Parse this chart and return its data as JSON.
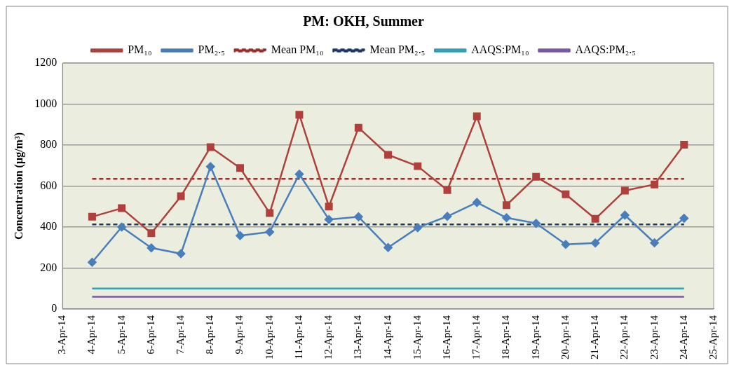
{
  "chart_data": {
    "type": "line",
    "title": "PM: OKH, Summer",
    "ylabel": "Concentration (µg/m³)",
    "categories": [
      "3-Apr-14",
      "4-Apr-14",
      "5-Apr-14",
      "6-Apr-14",
      "7-Apr-14",
      "8-Apr-14",
      "9-Apr-14",
      "10-Apr-14",
      "11-Apr-14",
      "12-Apr-14",
      "13-Apr-14",
      "14-Apr-14",
      "15-Apr-14",
      "16-Apr-14",
      "17-Apr-14",
      "18-Apr-14",
      "19-Apr-14",
      "20-Apr-14",
      "21-Apr-14",
      "22-Apr-14",
      "23-Apr-14",
      "24-Apr-14",
      "25-Apr-14"
    ],
    "series": [
      {
        "name": "PM₁₀",
        "color": "#b0403c",
        "marker": "square",
        "line_style": "solid",
        "values": [
          null,
          450,
          492,
          370,
          550,
          790,
          688,
          468,
          948,
          500,
          885,
          752,
          697,
          580,
          940,
          507,
          645,
          560,
          440,
          578,
          608,
          802,
          null
        ]
      },
      {
        "name": "PM₂.₅",
        "color": "#4a7ebb",
        "marker": "diamond",
        "line_style": "solid",
        "values": [
          null,
          228,
          400,
          298,
          270,
          695,
          358,
          376,
          658,
          437,
          450,
          300,
          397,
          452,
          520,
          445,
          418,
          315,
          322,
          458,
          323,
          443,
          null
        ]
      },
      {
        "name": "Mean PM₁₀",
        "color": "#9b2d2d",
        "marker": "none",
        "line_style": "dashed",
        "values": [
          null,
          635,
          635,
          635,
          635,
          635,
          635,
          635,
          635,
          635,
          635,
          635,
          635,
          635,
          635,
          635,
          635,
          635,
          635,
          635,
          635,
          635,
          null
        ]
      },
      {
        "name": "Mean PM₂.₅",
        "color": "#1f3864",
        "marker": "none",
        "line_style": "dashed",
        "values": [
          null,
          413,
          413,
          413,
          413,
          413,
          413,
          413,
          413,
          413,
          413,
          413,
          413,
          413,
          413,
          413,
          413,
          413,
          413,
          413,
          413,
          413,
          null
        ]
      },
      {
        "name": "AAQS:PM₁₀",
        "color": "#31a0b5",
        "marker": "none",
        "line_style": "solid",
        "values": [
          null,
          100,
          100,
          100,
          100,
          100,
          100,
          100,
          100,
          100,
          100,
          100,
          100,
          100,
          100,
          100,
          100,
          100,
          100,
          100,
          100,
          100,
          null
        ]
      },
      {
        "name": "AAQS:PM₂.₅",
        "color": "#7a58a0",
        "marker": "none",
        "line_style": "solid",
        "values": [
          null,
          60,
          60,
          60,
          60,
          60,
          60,
          60,
          60,
          60,
          60,
          60,
          60,
          60,
          60,
          60,
          60,
          60,
          60,
          60,
          60,
          60,
          null
        ]
      }
    ],
    "ylim": [
      0,
      1200
    ],
    "yticks": [
      0,
      200,
      400,
      600,
      800,
      1000,
      1200
    ],
    "grid": "y",
    "legend": "top"
  }
}
